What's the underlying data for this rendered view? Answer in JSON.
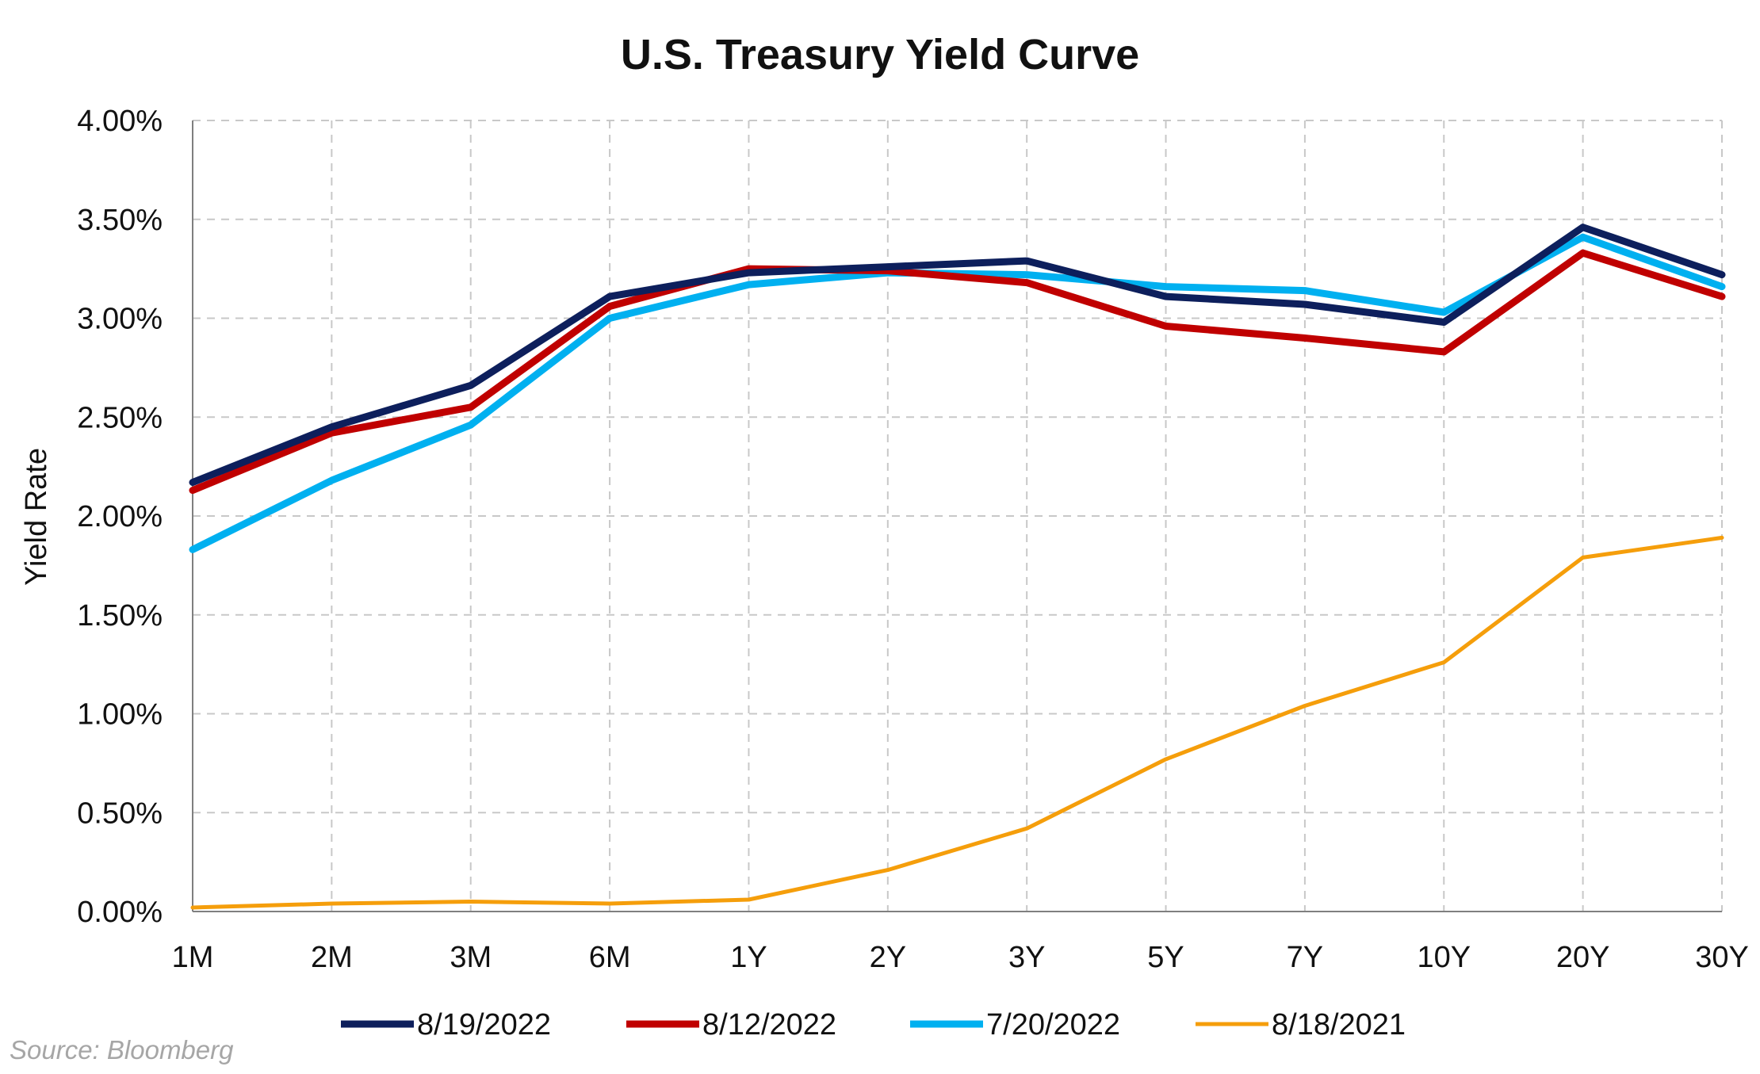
{
  "chart_data": {
    "type": "line",
    "title": "U.S. Treasury Yield Curve",
    "ylabel": "Yield Rate",
    "xlabel": "",
    "ylim": [
      0,
      4
    ],
    "yticks": [
      "0.00%",
      "0.50%",
      "1.00%",
      "1.50%",
      "2.00%",
      "2.50%",
      "3.00%",
      "3.50%",
      "4.00%"
    ],
    "grid": true,
    "legend_position": "bottom",
    "categories": [
      "1M",
      "2M",
      "3M",
      "6M",
      "1Y",
      "2Y",
      "3Y",
      "5Y",
      "7Y",
      "10Y",
      "20Y",
      "30Y"
    ],
    "series": [
      {
        "name": "8/19/2022",
        "color": "#0d1f5c",
        "values": [
          2.17,
          2.45,
          2.66,
          3.11,
          3.23,
          3.26,
          3.29,
          3.11,
          3.07,
          2.98,
          3.46,
          3.22
        ]
      },
      {
        "name": "8/12/2022",
        "color": "#c00000",
        "values": [
          2.13,
          2.42,
          2.55,
          3.06,
          3.25,
          3.24,
          3.18,
          2.96,
          2.9,
          2.83,
          3.33,
          3.11
        ]
      },
      {
        "name": "7/20/2022",
        "color": "#00b0f0",
        "values": [
          1.83,
          2.18,
          2.46,
          3.0,
          3.17,
          3.23,
          3.22,
          3.16,
          3.14,
          3.03,
          3.41,
          3.16
        ]
      },
      {
        "name": "8/18/2021",
        "color": "#f59e0b",
        "values": [
          0.02,
          0.04,
          0.05,
          0.04,
          0.06,
          0.21,
          0.42,
          0.77,
          1.04,
          1.26,
          1.79,
          1.89
        ]
      }
    ],
    "source": "Source: Bloomberg"
  }
}
